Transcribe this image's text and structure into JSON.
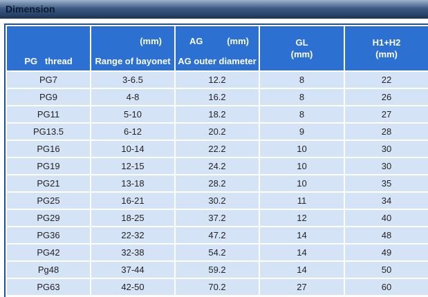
{
  "header": {
    "title": "Dimension"
  },
  "table": {
    "columns": [
      {
        "bottom": "PG   thread"
      },
      {
        "top": "(mm)",
        "bottom": "Range of bayonet"
      },
      {
        "top_left": "AG",
        "top_right": "(mm)",
        "bottom": "AG outer diameter"
      },
      {
        "lines": [
          "GL",
          "(mm)"
        ]
      },
      {
        "lines": [
          "H1+H2",
          "(mm)"
        ]
      }
    ],
    "rows": [
      [
        "PG7",
        "3-6.5",
        "12.2",
        "8",
        "22"
      ],
      [
        "PG9",
        "4-8",
        "16.2",
        "8",
        "26"
      ],
      [
        "PG11",
        "5-10",
        "18.2",
        "8",
        "27"
      ],
      [
        "PG13.5",
        "6-12",
        "20.2",
        "9",
        "28"
      ],
      [
        "PG16",
        "10-14",
        "22.2",
        "10",
        "30"
      ],
      [
        "PG19",
        "12-15",
        "24.2",
        "10",
        "30"
      ],
      [
        "PG21",
        "13-18",
        "28.2",
        "10",
        "35"
      ],
      [
        "PG25",
        "16-21",
        "30.2",
        "11",
        "34"
      ],
      [
        "PG29",
        "18-25",
        "37.2",
        "12",
        "40"
      ],
      [
        "PG36",
        "22-32",
        "47.2",
        "14",
        "48"
      ],
      [
        "PG42",
        "32-38",
        "54.2",
        "14",
        "49"
      ],
      [
        "Pg48",
        "37-44",
        "59.2",
        "14",
        "50"
      ],
      [
        "PG63",
        "42-50",
        "70.2",
        "27",
        "60"
      ]
    ]
  }
}
